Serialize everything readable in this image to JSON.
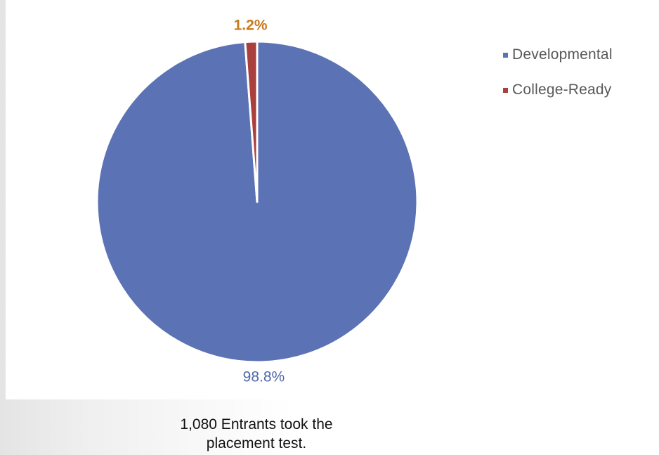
{
  "chart_data": {
    "type": "pie",
    "slices": [
      {
        "name": "Developmental",
        "value": 98.8,
        "label": "98.8%",
        "color": "#5b72b4",
        "label_color": "#4e68ad"
      },
      {
        "name": "College-Ready",
        "value": 1.2,
        "label": "1.2%",
        "color": "#a9403e",
        "label_color": "#c6791f"
      }
    ],
    "legend": {
      "placement": "right-top",
      "items": [
        {
          "label": "Developmental",
          "color": "#5b72b4"
        },
        {
          "label": "College-Ready",
          "color": "#a9403e"
        }
      ]
    },
    "start_angle_deg": 0,
    "direction": "clockwise"
  },
  "caption": {
    "line1": "1,080 Entrants took the",
    "line2": "placement test."
  }
}
